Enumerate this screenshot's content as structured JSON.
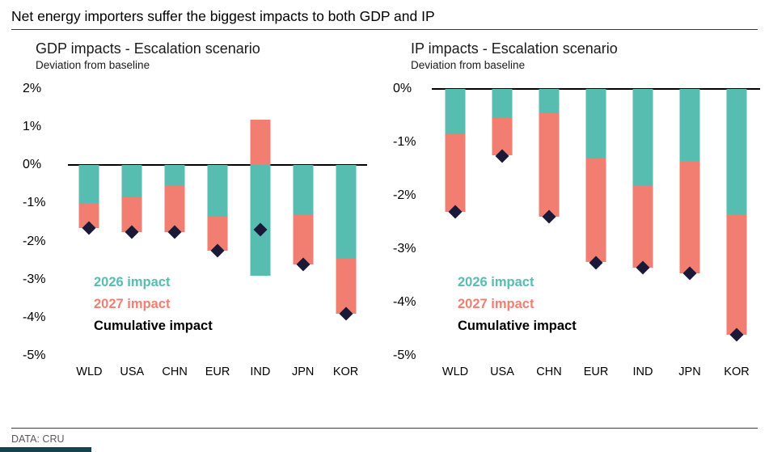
{
  "page": {
    "title": "Net energy importers suffer the biggest impacts to both GDP and IP",
    "footer": "DATA: CRU"
  },
  "colors": {
    "impact2026": "#57BDB1",
    "impact2027": "#F27E72",
    "cumulative": "#1A1A38",
    "axis": "#000000",
    "footer_text": "#595959"
  },
  "legend": {
    "item2026": "2026 impact",
    "item2027": "2027 impact",
    "cumulative": "Cumulative impact"
  },
  "chart_data": [
    {
      "type": "bar",
      "title": "GDP impacts - Escalation scenario",
      "subtitle": "Deviation from baseline",
      "categories": [
        "WLD",
        "USA",
        "CHN",
        "EUR",
        "IND",
        "JPN",
        "KOR"
      ],
      "series": [
        {
          "name": "2026 impact",
          "values": [
            -1.0,
            -0.85,
            -0.55,
            -1.35,
            -2.9,
            -1.3,
            -2.45
          ]
        },
        {
          "name": "2027 impact",
          "values": [
            -0.65,
            -0.9,
            -1.2,
            -0.9,
            1.2,
            -1.3,
            -1.45
          ]
        }
      ],
      "markers": {
        "name": "Cumulative impact",
        "values": [
          -1.65,
          -1.75,
          -1.75,
          -2.25,
          -1.7,
          -2.6,
          -3.9
        ]
      },
      "ylim": [
        -5,
        2
      ],
      "yticks": [
        "2%",
        "1%",
        "0%",
        "-1%",
        "-2%",
        "-3%",
        "-4%",
        "-5%"
      ],
      "ytick_values": [
        2,
        1,
        0,
        -1,
        -2,
        -3,
        -4,
        -5
      ],
      "grid": false,
      "legend_position": "inside-lower-left"
    },
    {
      "type": "bar",
      "title": "IP impacts - Escalation scenario",
      "subtitle": "Deviation from baseline",
      "categories": [
        "WLD",
        "USA",
        "CHN",
        "EUR",
        "IND",
        "JPN",
        "KOR"
      ],
      "series": [
        {
          "name": "2026 impact",
          "values": [
            -0.85,
            -0.55,
            -0.45,
            -1.3,
            -1.8,
            -1.35,
            -2.35
          ]
        },
        {
          "name": "2027 impact",
          "values": [
            -1.45,
            -0.7,
            -1.95,
            -1.95,
            -1.55,
            -2.1,
            -2.25
          ]
        }
      ],
      "markers": {
        "name": "Cumulative impact",
        "values": [
          -2.3,
          -1.25,
          -2.4,
          -3.25,
          -3.35,
          -3.45,
          -4.6
        ]
      },
      "ylim": [
        -5,
        0
      ],
      "yticks": [
        "0%",
        "-1%",
        "-2%",
        "-3%",
        "-4%",
        "-5%"
      ],
      "ytick_values": [
        0,
        -1,
        -2,
        -3,
        -4,
        -5
      ],
      "grid": false,
      "legend_position": "inside-lower-left"
    }
  ]
}
